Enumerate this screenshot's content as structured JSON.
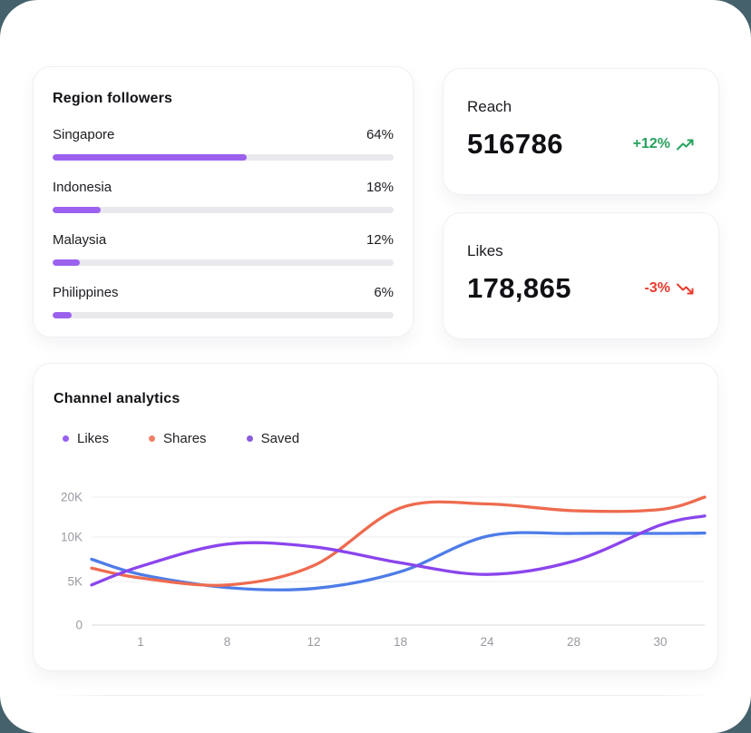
{
  "page": {
    "background_color": "#45616c",
    "surface_color": "#ffffff"
  },
  "region_card": {
    "title": "Region followers",
    "bar_color": "#9b61ee",
    "track_color": "#e9e9ed",
    "rows": [
      {
        "label": "Singapore",
        "percent_label": "64%",
        "fill_percent": 57
      },
      {
        "label": "Indonesia",
        "percent_label": "18%",
        "fill_percent": 14
      },
      {
        "label": "Malaysia",
        "percent_label": "12%",
        "fill_percent": 8
      },
      {
        "label": "Philippines",
        "percent_label": "6%",
        "fill_percent": 5.5
      }
    ]
  },
  "stats": [
    {
      "label": "Reach",
      "value": "516786",
      "delta": "+12%",
      "direction": "up",
      "color": "#27a15d",
      "icon": "trending-up-icon"
    },
    {
      "label": "Likes",
      "value": "178,865",
      "delta": "-3%",
      "direction": "down",
      "color": "#e83a2c",
      "icon": "trending-down-icon"
    }
  ],
  "chart_card": {
    "title": "Channel analytics"
  },
  "chart_data": {
    "type": "line",
    "title": "Channel analytics",
    "x_tick_labels": [
      "1",
      "8",
      "12",
      "18",
      "24",
      "28",
      "30"
    ],
    "y_tick_labels": [
      "0",
      "5K",
      "10K",
      "20K"
    ],
    "y_tick_values": [
      0,
      5000,
      10000,
      20000
    ],
    "y_axis_note": "tick marks evenly spaced; scale is non-linear above 10K",
    "x_note": "values sampled at [left-edge, 1, 8, 12, 18, 24, 28, 30, right-edge]",
    "grid": true,
    "legend_position": "top",
    "series": [
      {
        "name": "Likes",
        "dot_color": "#9a5ff0",
        "line_color": "#4e7ce8",
        "values": [
          7500,
          5800,
          4300,
          4200,
          6100,
          10200,
          10900,
          10900,
          11000
        ]
      },
      {
        "name": "Shares",
        "dot_color": "#f08068",
        "line_color": "#ee6b4f",
        "values": [
          6500,
          5400,
          4600,
          6800,
          17300,
          18300,
          16600,
          16900,
          20000
        ]
      },
      {
        "name": "Saved",
        "dot_color": "#8a5cdc",
        "line_color": "#8a45ec",
        "values": [
          4600,
          6700,
          9200,
          8900,
          7100,
          5800,
          7300,
          13000,
          15300
        ]
      }
    ]
  }
}
